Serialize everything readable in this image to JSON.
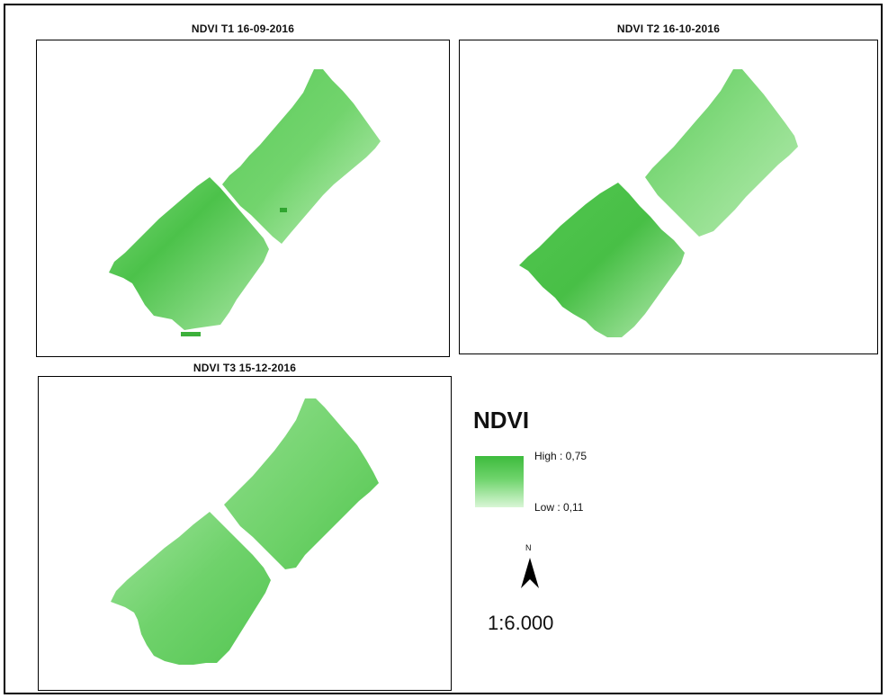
{
  "maps": [
    {
      "title": "NDVI T1 16-09-2016"
    },
    {
      "title": "NDVI T2 16-10-2016"
    },
    {
      "title": "NDVI T3 15-12-2016"
    }
  ],
  "legend": {
    "title": "NDVI",
    "high_label": "High : 0,75",
    "low_label": "Low : 0,11",
    "high_color": "#3dbb3d",
    "low_color": "#d9f6d6"
  },
  "north_arrow": {
    "label": "N"
  },
  "scale": {
    "text": "1:6.000"
  }
}
